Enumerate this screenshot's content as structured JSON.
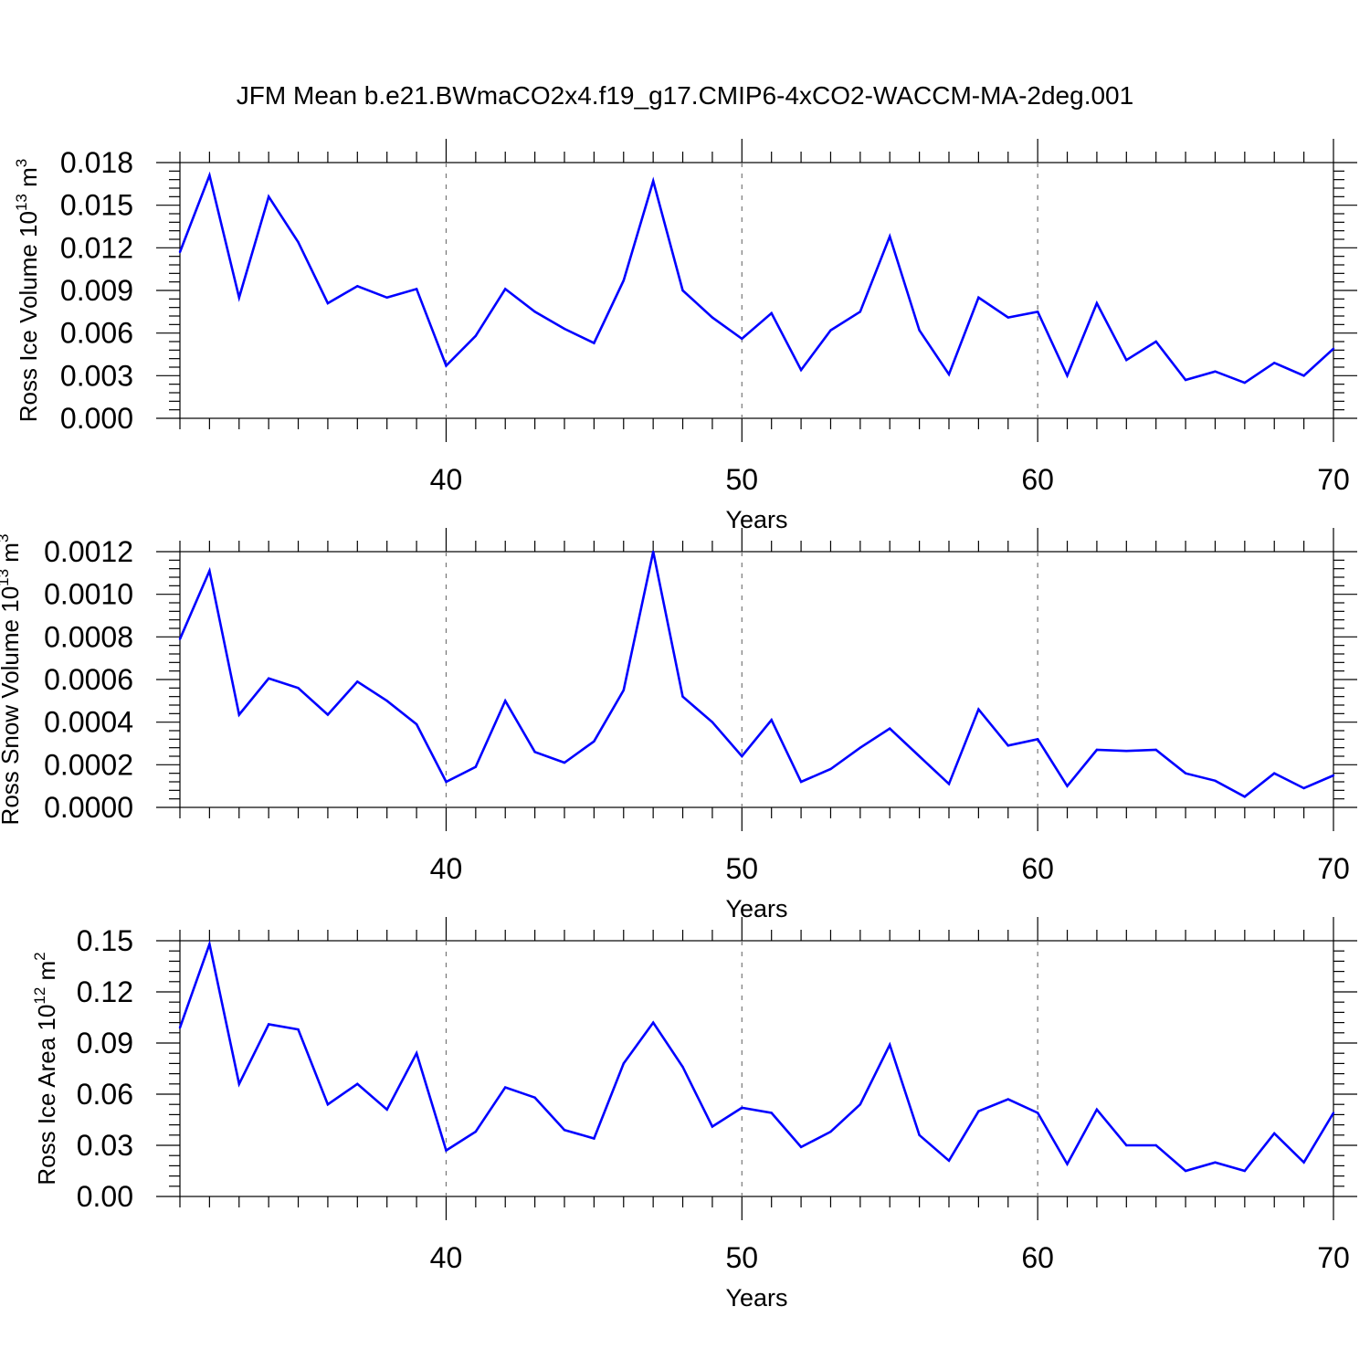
{
  "title": "JFM Mean b.e21.BWmaCO2x4.f19_g17.CMIP6-4xCO2-WACCM-MA-2deg.001",
  "series_color": "#0000ff",
  "chart_data": [
    {
      "type": "line",
      "xlabel": "Years",
      "ylabel_main": "Ross Ice Volume 10",
      "ylabel_exp": "13",
      "ylabel_unit": " m",
      "ylabel_unit_exp": "3",
      "xlim": [
        31,
        70
      ],
      "ylim": [
        0,
        0.018
      ],
      "xticks": [
        40,
        50,
        60,
        70
      ],
      "xtick_labels": [
        "40",
        "50",
        "60",
        "70"
      ],
      "yticks": [
        0,
        0.003,
        0.006,
        0.009,
        0.012,
        0.015,
        0.018
      ],
      "ytick_labels": [
        "0.000",
        "0.003",
        "0.006",
        "0.009",
        "0.012",
        "0.015",
        "0.018"
      ],
      "x": [
        31,
        32,
        33,
        34,
        35,
        36,
        37,
        38,
        39,
        40,
        41,
        42,
        43,
        44,
        45,
        46,
        47,
        48,
        49,
        50,
        51,
        52,
        53,
        54,
        55,
        56,
        57,
        58,
        59,
        60,
        61,
        62,
        63,
        64,
        65,
        66,
        67,
        68,
        69,
        70
      ],
      "values": [
        0.0117,
        0.0171,
        0.0085,
        0.0156,
        0.0124,
        0.0081,
        0.0093,
        0.0085,
        0.0091,
        0.0037,
        0.0058,
        0.0091,
        0.0075,
        0.0063,
        0.0053,
        0.0097,
        0.0167,
        0.009,
        0.0071,
        0.0056,
        0.0074,
        0.0034,
        0.0062,
        0.0075,
        0.0128,
        0.0062,
        0.0031,
        0.0085,
        0.0071,
        0.0075,
        0.003,
        0.0081,
        0.0041,
        0.0054,
        0.0027,
        0.0033,
        0.0025,
        0.0039,
        0.003,
        0.0049
      ]
    },
    {
      "type": "line",
      "xlabel": "Years",
      "ylabel_main": "Ross Snow Volume 10",
      "ylabel_exp": "13",
      "ylabel_unit": " m",
      "ylabel_unit_exp": "3",
      "xlim": [
        31,
        70
      ],
      "ylim": [
        0,
        0.0012
      ],
      "xticks": [
        40,
        50,
        60,
        70
      ],
      "xtick_labels": [
        "40",
        "50",
        "60",
        "70"
      ],
      "yticks": [
        0,
        0.0002,
        0.0004,
        0.0006,
        0.0008,
        0.001,
        0.0012
      ],
      "ytick_labels": [
        "0.0000",
        "0.0002",
        "0.0004",
        "0.0006",
        "0.0008",
        "0.0010",
        "0.0012"
      ],
      "x": [
        31,
        32,
        33,
        34,
        35,
        36,
        37,
        38,
        39,
        40,
        41,
        42,
        43,
        44,
        45,
        46,
        47,
        48,
        49,
        50,
        51,
        52,
        53,
        54,
        55,
        56,
        57,
        58,
        59,
        60,
        61,
        62,
        63,
        64,
        65,
        66,
        67,
        68,
        69,
        70
      ],
      "values": [
        0.00079,
        0.00111,
        0.000435,
        0.000605,
        0.00056,
        0.000435,
        0.00059,
        0.0005,
        0.00039,
        0.00012,
        0.00019,
        0.0005,
        0.00026,
        0.00021,
        0.00031,
        0.00055,
        0.0012,
        0.00052,
        0.0004,
        0.00024,
        0.00041,
        0.00012,
        0.00018,
        0.00028,
        0.00037,
        0.00024,
        0.00011,
        0.00046,
        0.00029,
        0.00032,
        0.0001,
        0.00027,
        0.000265,
        0.00027,
        0.00016,
        0.000125,
        5e-05,
        0.00016,
        9e-05,
        0.00015
      ]
    },
    {
      "type": "line",
      "xlabel": "Years",
      "ylabel_main": "Ross Ice Area 10",
      "ylabel_exp": "12",
      "ylabel_unit": " m",
      "ylabel_unit_exp": "2",
      "xlim": [
        31,
        70
      ],
      "ylim": [
        0,
        0.15
      ],
      "xticks": [
        40,
        50,
        60,
        70
      ],
      "xtick_labels": [
        "40",
        "50",
        "60",
        "70"
      ],
      "yticks": [
        0,
        0.03,
        0.06,
        0.09,
        0.12,
        0.15
      ],
      "ytick_labels": [
        "0.00",
        "0.03",
        "0.06",
        "0.09",
        "0.12",
        "0.15"
      ],
      "x": [
        31,
        32,
        33,
        34,
        35,
        36,
        37,
        38,
        39,
        40,
        41,
        42,
        43,
        44,
        45,
        46,
        47,
        48,
        49,
        50,
        51,
        52,
        53,
        54,
        55,
        56,
        57,
        58,
        59,
        60,
        61,
        62,
        63,
        64,
        65,
        66,
        67,
        68,
        69,
        70
      ],
      "values": [
        0.099,
        0.148,
        0.066,
        0.101,
        0.098,
        0.054,
        0.066,
        0.051,
        0.084,
        0.027,
        0.038,
        0.064,
        0.058,
        0.039,
        0.034,
        0.078,
        0.102,
        0.076,
        0.041,
        0.052,
        0.049,
        0.029,
        0.038,
        0.054,
        0.089,
        0.036,
        0.021,
        0.05,
        0.057,
        0.049,
        0.019,
        0.051,
        0.03,
        0.03,
        0.015,
        0.02,
        0.015,
        0.037,
        0.02,
        0.049
      ]
    }
  ]
}
